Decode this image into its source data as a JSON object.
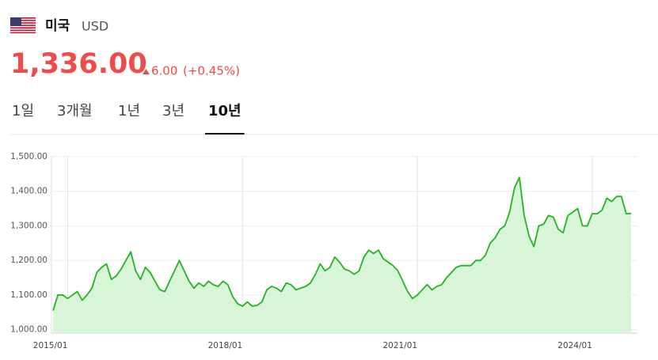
{
  "header": {
    "country": "미국",
    "currency": "USD",
    "price": "1,336.00",
    "change": "6.00",
    "change_pct": "(+0.45%)"
  },
  "tabs": {
    "items": [
      "1일",
      "3개월",
      "1년",
      "3년",
      "10년"
    ],
    "active": 4
  },
  "chart_data": {
    "type": "line",
    "x": [
      "2014/10",
      "2014/11",
      "2014/12",
      "2015/01",
      "2015/02",
      "2015/03",
      "2015/04",
      "2015/05",
      "2015/06",
      "2015/07",
      "2015/08",
      "2015/09",
      "2015/10",
      "2015/11",
      "2015/12",
      "2016/01",
      "2016/02",
      "2016/03",
      "2016/04",
      "2016/05",
      "2016/06",
      "2016/07",
      "2016/08",
      "2016/09",
      "2016/10",
      "2016/11",
      "2016/12",
      "2017/01",
      "2017/02",
      "2017/03",
      "2017/04",
      "2017/05",
      "2017/06",
      "2017/07",
      "2017/08",
      "2017/09",
      "2017/10",
      "2017/11",
      "2017/12",
      "2018/01",
      "2018/02",
      "2018/03",
      "2018/04",
      "2018/05",
      "2018/06",
      "2018/07",
      "2018/08",
      "2018/09",
      "2018/10",
      "2018/11",
      "2018/12",
      "2019/01",
      "2019/02",
      "2019/03",
      "2019/04",
      "2019/05",
      "2019/06",
      "2019/07",
      "2019/08",
      "2019/09",
      "2019/10",
      "2019/11",
      "2019/12",
      "2020/01",
      "2020/02",
      "2020/03",
      "2020/04",
      "2020/05",
      "2020/06",
      "2020/07",
      "2020/08",
      "2020/09",
      "2020/10",
      "2020/11",
      "2020/12",
      "2021/01",
      "2021/02",
      "2021/03",
      "2021/04",
      "2021/05",
      "2021/06",
      "2021/07",
      "2021/08",
      "2021/09",
      "2021/10",
      "2021/11",
      "2021/12",
      "2022/01",
      "2022/02",
      "2022/03",
      "2022/04",
      "2022/05",
      "2022/06",
      "2022/07",
      "2022/08",
      "2022/09",
      "2022/10",
      "2022/11",
      "2022/12",
      "2023/01",
      "2023/02",
      "2023/03",
      "2023/04",
      "2023/05",
      "2023/06",
      "2023/07",
      "2023/08",
      "2023/09",
      "2023/10",
      "2023/11",
      "2023/12",
      "2024/01",
      "2024/02",
      "2024/03",
      "2024/04",
      "2024/05",
      "2024/06",
      "2024/07",
      "2024/08",
      "2024/09"
    ],
    "values": [
      1055,
      1100,
      1100,
      1090,
      1100,
      1110,
      1085,
      1100,
      1120,
      1165,
      1180,
      1190,
      1145,
      1155,
      1175,
      1200,
      1225,
      1170,
      1145,
      1180,
      1165,
      1140,
      1115,
      1110,
      1140,
      1170,
      1200,
      1170,
      1140,
      1120,
      1135,
      1125,
      1140,
      1130,
      1125,
      1140,
      1130,
      1095,
      1075,
      1068,
      1080,
      1068,
      1070,
      1080,
      1115,
      1125,
      1120,
      1110,
      1135,
      1130,
      1115,
      1120,
      1125,
      1135,
      1160,
      1190,
      1170,
      1180,
      1210,
      1195,
      1175,
      1170,
      1160,
      1170,
      1210,
      1230,
      1220,
      1230,
      1205,
      1195,
      1185,
      1170,
      1140,
      1110,
      1090,
      1100,
      1115,
      1130,
      1115,
      1125,
      1130,
      1150,
      1165,
      1180,
      1185,
      1185,
      1185,
      1200,
      1200,
      1215,
      1250,
      1265,
      1290,
      1300,
      1340,
      1410,
      1440,
      1330,
      1270,
      1240,
      1300,
      1305,
      1330,
      1325,
      1290,
      1280,
      1330,
      1340,
      1350,
      1300,
      1300,
      1335,
      1335,
      1345,
      1380,
      1370,
      1385,
      1385,
      1335,
      1336
    ],
    "color": "#1fb51f",
    "fill": "#d8f5d8",
    "xlim": [
      "2014/10",
      "2024/09"
    ],
    "xticks": [
      "2015/01",
      "2018/01",
      "2021/01",
      "2024/01"
    ],
    "ylim": [
      990,
      1500
    ],
    "yticks": [
      {
        "value": 1000,
        "label": "1,000.00"
      },
      {
        "value": 1100,
        "label": "1,100.00"
      },
      {
        "value": 1200,
        "label": "1,200.00"
      },
      {
        "value": 1300,
        "label": "1,300.00"
      },
      {
        "value": 1400,
        "label": "1,400.00"
      },
      {
        "value": 1500,
        "label": "1,500.00"
      }
    ],
    "grid": true
  }
}
